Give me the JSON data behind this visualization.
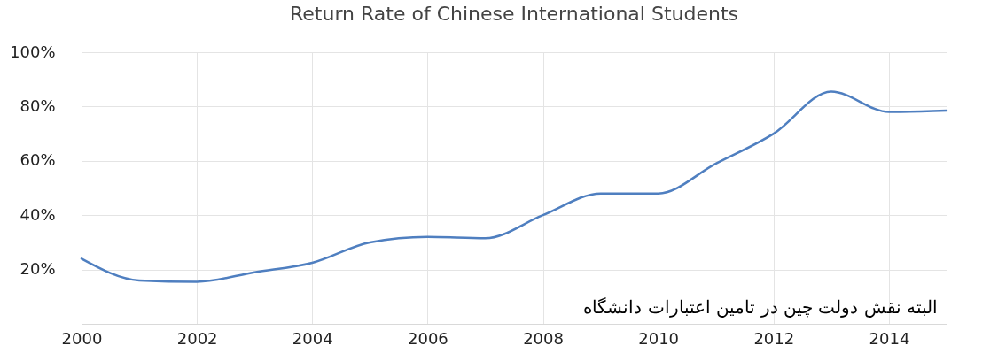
{
  "chart_data": {
    "type": "line",
    "title": "Return Rate of Chinese International Students",
    "x": [
      2000,
      2001,
      2002,
      2003,
      2004,
      2005,
      2006,
      2007,
      2008,
      2009,
      2010,
      2011,
      2012,
      2013,
      2014,
      2015
    ],
    "series": [
      {
        "color": "#4f7fc0",
        "values": [
          24,
          16,
          15.5,
          19,
          22.5,
          30,
          32,
          31.5,
          40,
          48,
          48,
          59,
          70,
          85.5,
          78,
          78.5
        ]
      }
    ],
    "xlim": [
      2000,
      2015
    ],
    "xticks": [
      2000,
      2002,
      2004,
      2006,
      2008,
      2010,
      2012,
      2014
    ],
    "ylim": [
      0,
      100
    ],
    "yticks": [
      {
        "value": 20,
        "label": "20%"
      },
      {
        "value": 40,
        "label": "40%"
      },
      {
        "value": 60,
        "label": "60%"
      },
      {
        "value": 80,
        "label": "80%"
      },
      {
        "value": 100,
        "label": "100%"
      }
    ],
    "grid": true,
    "marker": "none",
    "line_style": "solid",
    "annotations": [
      "البته نقش دولت چین در تامین اعتبارات دانشگاه"
    ]
  }
}
